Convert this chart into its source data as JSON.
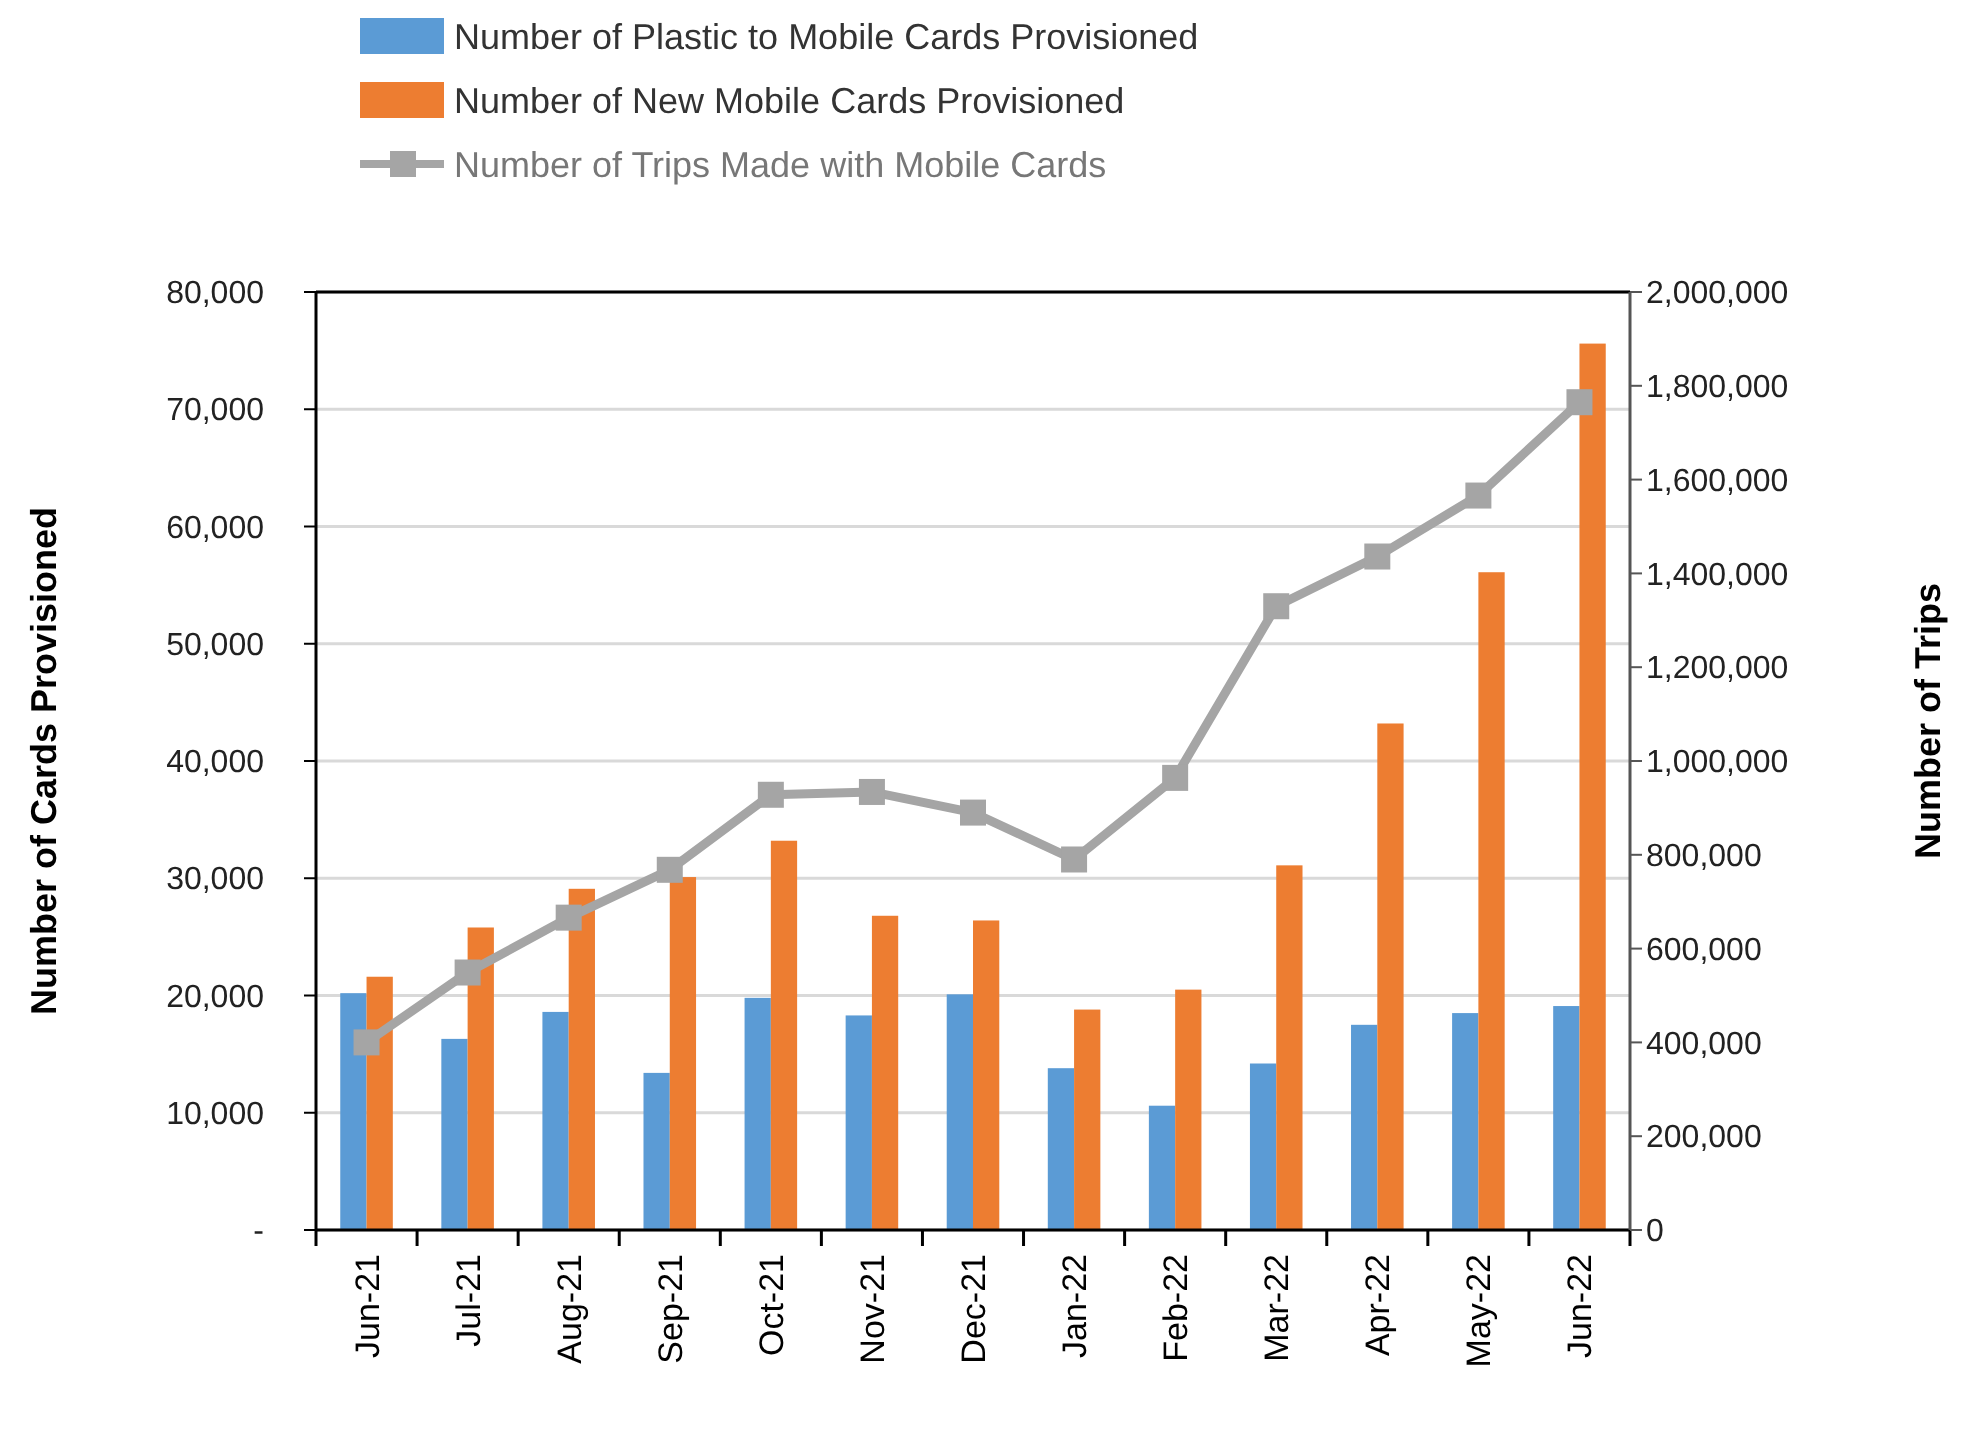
{
  "chart_data": {
    "type": "bar",
    "ylabel": "Number of Cards Provisioned",
    "y2label": "Number of Trips",
    "categories": [
      "Jun-21",
      "Jul-21",
      "Aug-21",
      "Sep-21",
      "Oct-21",
      "Nov-21",
      "Dec-21",
      "Jan-22",
      "Feb-22",
      "Mar-22",
      "Apr-22",
      "May-22",
      "Jun-22"
    ],
    "series": [
      {
        "name": "Number of Plastic to Mobile Cards Provisioned",
        "color": "#5b9bd5",
        "values": [
          20200,
          16300,
          18600,
          13400,
          19800,
          18300,
          20100,
          13800,
          10600,
          14200,
          17500,
          18500,
          19100
        ]
      },
      {
        "name": "Number of New Mobile Cards Provisioned",
        "color": "#ed7d31",
        "values": [
          21600,
          25800,
          29100,
          30100,
          33200,
          26800,
          26400,
          18800,
          20500,
          31100,
          43200,
          56100,
          75600
        ]
      },
      {
        "name": "Number of Trips Made with Mobile Cards",
        "type": "line",
        "axis": "y2",
        "color": "#a5a5a5",
        "marker": "square",
        "values": [
          400000,
          549000,
          666000,
          768000,
          928000,
          934000,
          890000,
          790000,
          964000,
          1330000,
          1436000,
          1566000,
          1765000
        ]
      }
    ],
    "ylim": [
      0,
      80000
    ],
    "yticks": [
      {
        "value": 0,
        "label": "-"
      },
      {
        "value": 10000,
        "label": "10,000"
      },
      {
        "value": 20000,
        "label": "20,000"
      },
      {
        "value": 30000,
        "label": "30,000"
      },
      {
        "value": 40000,
        "label": "40,000"
      },
      {
        "value": 50000,
        "label": "50,000"
      },
      {
        "value": 60000,
        "label": "60,000"
      },
      {
        "value": 70000,
        "label": "70,000"
      },
      {
        "value": 80000,
        "label": "80,000"
      }
    ],
    "y2lim": [
      0,
      2000000
    ],
    "y2ticks": [
      {
        "value": 0,
        "label": "0"
      },
      {
        "value": 200000,
        "label": "200,000"
      },
      {
        "value": 400000,
        "label": "400,000"
      },
      {
        "value": 600000,
        "label": "600,000"
      },
      {
        "value": 800000,
        "label": "800,000"
      },
      {
        "value": 1000000,
        "label": "1,000,000"
      },
      {
        "value": 1200000,
        "label": "1,200,000"
      },
      {
        "value": 1400000,
        "label": "1,400,000"
      },
      {
        "value": 1600000,
        "label": "1,600,000"
      },
      {
        "value": 1800000,
        "label": "1,800,000"
      },
      {
        "value": 2000000,
        "label": "2,000,000"
      }
    ],
    "grid": "y",
    "legend": "top"
  }
}
